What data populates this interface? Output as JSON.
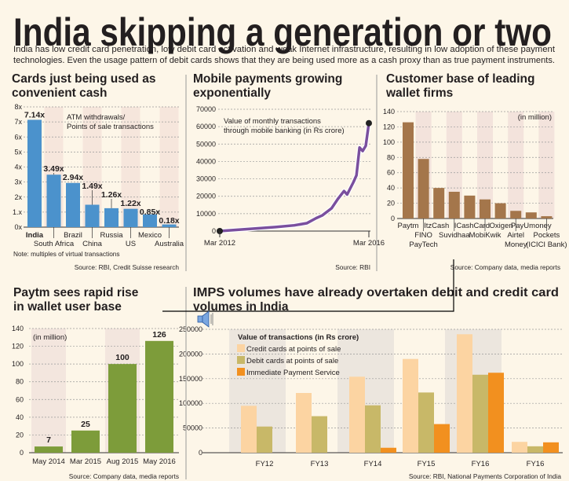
{
  "header": {
    "title": "India skipping a generation or two",
    "intro_line1": "India has low credit card penetration, low debit card activation and weak Internet infrastructure, resulting in low adoption of these payment",
    "intro_line2": "technologies. Even the usage pattern of debit cards shows that they are being used more as a cash proxy than as true payment instruments."
  },
  "colors": {
    "background": "#fdf6e8",
    "cards_bar": "#4b92cc",
    "mobile_line": "#7a4f9e",
    "wallet_bar": "#a4764b",
    "paytm_bar": "#7d9c3a",
    "credit": "#fcd4a2",
    "debit": "#c8b868",
    "imps": "#f2901f"
  },
  "chart_data": [
    {
      "type": "bar",
      "title_line1": "Cards just being used as",
      "title_line2": "convenient cash",
      "annotation_line1": "ATM withdrawals/",
      "annotation_line2": "Points of sale transactions",
      "categories": [
        "India",
        "South Africa",
        "Brazil",
        "China",
        "Russia",
        "US",
        "Mexico",
        "Australia"
      ],
      "values": [
        7.14,
        3.49,
        2.94,
        1.49,
        1.26,
        1.22,
        0.85,
        0.18
      ],
      "data_labels": [
        "7.14x",
        "3.49x",
        "2.94x",
        "1.49x",
        "1.26x",
        "1.22x",
        "0.85x",
        "0.18x"
      ],
      "yticks": [
        "0x",
        "1.x",
        "2x",
        "3x",
        "4x",
        "5x",
        "6x",
        "7x",
        "8x"
      ],
      "ylim": [
        0,
        8
      ],
      "note": "Note: multiples of virtual transactions",
      "source": "Source: RBI, Credit Suisse research"
    },
    {
      "type": "line",
      "title_line1": "Mobile payments growing",
      "title_line2": "exponentially",
      "annotation_line1": "Value of monthly transactions",
      "annotation_line2": "through mobile banking (in Rs crore)",
      "x": [
        "2012-03",
        "2013-09",
        "2014-03",
        "2014-07",
        "2014-10",
        "2014-12",
        "2015-03",
        "2015-05",
        "2015-07",
        "2015-08",
        "2015-10",
        "2015-11",
        "2015-12",
        "2016-01",
        "2016-02",
        "2016-03"
      ],
      "values": [
        0,
        2300,
        3300,
        4500,
        7400,
        9000,
        13100,
        18400,
        23000,
        21000,
        28000,
        32000,
        48000,
        46000,
        49000,
        62000
      ],
      "xticks": [
        "Mar 2012",
        "Mar 2016"
      ],
      "yticks": [
        "0",
        "10000",
        "20000",
        "30000",
        "40000",
        "50000",
        "60000",
        "70000"
      ],
      "ylim": [
        0,
        70000
      ],
      "source": "Source: RBI"
    },
    {
      "type": "bar",
      "title_line1": "Customer base of leading",
      "title_line2": "wallet firms",
      "unit": "(in million)",
      "categories": [
        "Paytm",
        "FINO PayTech",
        "ItzCash",
        "Suvidhaa",
        "ICashCard",
        "MobiKwik",
        "Oxigen",
        "Airtel Money",
        "PayUmoney",
        "Pockets (ICICI Bank)"
      ],
      "label_lines": [
        [
          "Paytm"
        ],
        [
          "FINO",
          "PayTech"
        ],
        [
          "ItzCash"
        ],
        [
          "Suvidhaa"
        ],
        [
          "ICashCard"
        ],
        [
          "MobiKwik"
        ],
        [
          "Oxigen"
        ],
        [
          "Airtel",
          "Money"
        ],
        [
          "PayUmoney"
        ],
        [
          "Pockets",
          "(ICICI Bank)"
        ]
      ],
      "values": [
        126,
        78,
        40,
        35,
        30,
        25,
        20,
        10,
        8,
        3
      ],
      "yticks": [
        "0",
        "20",
        "40",
        "60",
        "80",
        "100",
        "120",
        "140"
      ],
      "ylim": [
        0,
        140
      ],
      "source": "Source: Company data, media reports"
    },
    {
      "type": "bar",
      "title_line1": "Paytm sees rapid rise",
      "title_line2": "in wallet user base",
      "unit": "(in million)",
      "categories": [
        "May 2014",
        "Mar 2015",
        "Aug 2015",
        "May 2016"
      ],
      "values": [
        7,
        25,
        100,
        126
      ],
      "data_labels": [
        "7",
        "25",
        "100",
        "126"
      ],
      "yticks": [
        "0",
        "20",
        "40",
        "60",
        "80",
        "100",
        "120",
        "140"
      ],
      "ylim": [
        0,
        140
      ],
      "source": "Source: Company data, media reports"
    },
    {
      "type": "bar",
      "title_line1": "IMPS volumes have already overtaken debit and credit card",
      "title_line2": "volumes in India",
      "legend_title": "Value of transactions (in Rs crore)",
      "legend": "top-left",
      "categories": [
        "FY12",
        "FY13",
        "FY14",
        "FY15",
        "FY16",
        "FY16"
      ],
      "series": [
        {
          "name": "Credit cards at points of sale",
          "values": [
            95000,
            121000,
            154000,
            190000,
            240000,
            22000
          ]
        },
        {
          "name": "Debit cards at points of sale",
          "values": [
            53000,
            74000,
            96000,
            122000,
            158000,
            13000
          ]
        },
        {
          "name": "Immediate Payment Service",
          "values": [
            0,
            0,
            10000,
            58000,
            162000,
            21000
          ]
        }
      ],
      "yticks": [
        "0",
        "50000",
        "100000",
        "150000",
        "200000",
        "250000"
      ],
      "ylim": [
        0,
        250000
      ],
      "source": "Source: RBI, National Payments Corporation of India"
    }
  ],
  "overlay": {
    "icon": "speaker-icon"
  }
}
